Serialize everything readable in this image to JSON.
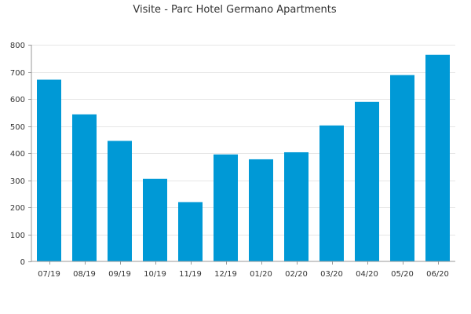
{
  "chart_data": {
    "type": "bar",
    "title": "Visite - Parc Hotel Germano Apartments",
    "xlabel": "",
    "ylabel": "",
    "categories": [
      "07/19",
      "08/19",
      "09/19",
      "10/19",
      "11/19",
      "12/19",
      "01/20",
      "02/20",
      "03/20",
      "04/20",
      "05/20",
      "06/20"
    ],
    "values": [
      671,
      543,
      445,
      305,
      219,
      395,
      377,
      403,
      502,
      589,
      688,
      763
    ],
    "ylim": [
      0,
      800
    ],
    "yticks": [
      0,
      100,
      200,
      300,
      400,
      500,
      600,
      700,
      800
    ],
    "grid": true,
    "legend": "none",
    "bar_color": "#0099d6"
  }
}
